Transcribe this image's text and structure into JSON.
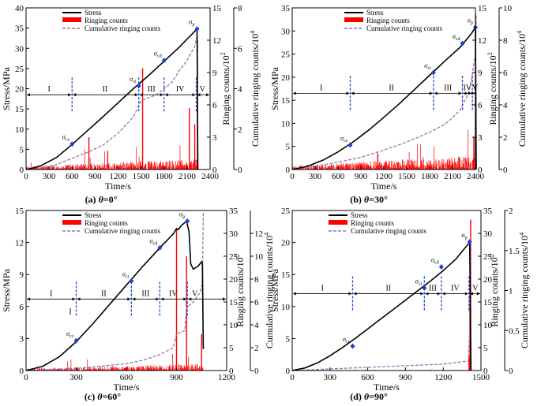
{
  "colors": {
    "stress": "#000000",
    "ringing": "#ff0000",
    "cumulative": "#a06fb4",
    "stage_line": "#1f3fd9",
    "marker": "#1f3fd9"
  },
  "legend_labels": [
    "Stress",
    "Ringing counts",
    "Cumulative ringing counts"
  ],
  "chart_data": [
    {
      "id": "a",
      "type": "line",
      "caption": "(a) θ=0°",
      "caption_prefix": "(a) ",
      "caption_var": "θ",
      "caption_val": "=0°",
      "xlabel": "Time/s",
      "ylabel_left": "Stress/MPa",
      "ylabel_r1": "Ringing counts/10",
      "ylabel_r1_exp": "2",
      "ylabel_r2": "Cumulative ringing counts/10",
      "ylabel_r2_exp": "4",
      "xlim": [
        0,
        2400
      ],
      "xticks": [
        0,
        300,
        600,
        900,
        1200,
        1500,
        1800,
        2100,
        2400
      ],
      "ylim_left": [
        0,
        40
      ],
      "yticks_left": [
        0,
        5,
        10,
        15,
        20,
        25,
        30,
        35,
        40
      ],
      "ylim_r1": [
        0,
        15
      ],
      "yticks_r1": [
        0,
        3,
        6,
        9,
        12,
        15
      ],
      "ylim_r2": [
        0,
        8
      ],
      "yticks_r2": [
        0,
        2,
        4,
        6,
        8
      ],
      "stress": {
        "x": [
          0,
          100,
          200,
          400,
          600,
          800,
          1000,
          1200,
          1400,
          1600,
          1800,
          2000,
          2100,
          2200,
          2230,
          2240
        ],
        "y": [
          0,
          0.4,
          1.0,
          3.0,
          6.2,
          9.6,
          13.0,
          16.5,
          20.0,
          23.3,
          26.8,
          30.3,
          32.3,
          34.2,
          34.8,
          0
        ]
      },
      "cumulative": {
        "x": [
          0,
          200,
          400,
          600,
          800,
          1000,
          1200,
          1400,
          1500,
          1700,
          1900,
          2000,
          2100,
          2200,
          2230
        ],
        "y": [
          0,
          0.08,
          0.25,
          0.55,
          0.85,
          1.2,
          1.8,
          2.6,
          3.4,
          3.7,
          4.3,
          4.9,
          5.4,
          6.1,
          6.6
        ]
      },
      "ringing": {
        "density": 0.55,
        "base": 0.6,
        "max_x": 2240,
        "spikes": [
          {
            "x": 820,
            "v": 3.0
          },
          {
            "x": 1520,
            "v": 9.4
          },
          {
            "x": 2130,
            "v": 5.7
          },
          {
            "x": 2200,
            "v": 4.2
          },
          {
            "x": 2235,
            "v": 12.0
          }
        ]
      },
      "stage_bounds": [
        600,
        1470,
        1800,
        2220
      ],
      "stages": [
        {
          "label": "I",
          "x": 300
        },
        {
          "label": "II",
          "x": 1030
        },
        {
          "label": "III",
          "x": 1635
        },
        {
          "label": "IV",
          "x": 2010
        },
        {
          "label": "V",
          "x": 2300
        }
      ],
      "stage_y": 18.5,
      "markers": [
        {
          "label": "σcc",
          "sym": "σ",
          "sub": "cc",
          "x": 600,
          "y": 6.3
        },
        {
          "label": "σci",
          "sym": "σ",
          "sub": "ci",
          "x": 1470,
          "y": 20.7
        },
        {
          "label": "σcd",
          "sym": "σ",
          "sub": "cd",
          "x": 1800,
          "y": 27.0
        },
        {
          "label": "σp",
          "sym": "σ",
          "sub": "p",
          "x": 2230,
          "y": 34.8
        }
      ],
      "legend_pos": "top-left"
    },
    {
      "id": "b",
      "type": "line",
      "caption": "(b) θ=30°",
      "caption_prefix": "(b) ",
      "caption_var": "θ",
      "caption_val": "=30°",
      "xlabel": "Time/s",
      "ylabel_left": "Stress/MPa",
      "ylabel_r1": "Ringing counts/10",
      "ylabel_r1_exp": "2",
      "ylabel_r2": "Cumulative ringing counts/10",
      "ylabel_r2_exp": "4",
      "xlim": [
        0,
        2400
      ],
      "xticks": [
        0,
        300,
        600,
        900,
        1200,
        1500,
        1800,
        2100,
        2400
      ],
      "ylim_left": [
        0,
        35
      ],
      "yticks_left": [
        0,
        5,
        10,
        15,
        20,
        25,
        30,
        35
      ],
      "ylim_r1": [
        0,
        15
      ],
      "yticks_r1": [
        0,
        3,
        6,
        9,
        12,
        15
      ],
      "ylim_r2": [
        0,
        10
      ],
      "yticks_r2": [
        0,
        2,
        4,
        6,
        8,
        10
      ],
      "stress": {
        "x": [
          0,
          200,
          400,
          600,
          800,
          1000,
          1200,
          1400,
          1600,
          1800,
          2000,
          2200,
          2350,
          2400,
          2410
        ],
        "y": [
          0,
          0.7,
          2.0,
          3.8,
          6.0,
          8.5,
          11.3,
          14.2,
          17.3,
          20.4,
          23.5,
          26.5,
          29.5,
          30.8,
          0
        ]
      },
      "cumulative": {
        "x": [
          0,
          300,
          600,
          900,
          1200,
          1500,
          1800,
          2000,
          2100,
          2200,
          2300,
          2350,
          2400,
          2410
        ],
        "y": [
          0,
          0.2,
          0.45,
          0.75,
          1.2,
          1.7,
          2.3,
          2.8,
          3.2,
          3.7,
          4.6,
          5.6,
          7.2,
          9.5
        ]
      },
      "ringing": {
        "density": 0.6,
        "base": 0.7,
        "max_x": 2410,
        "spikes": [
          {
            "x": 1120,
            "v": 1.5
          },
          {
            "x": 2380,
            "v": 3.0
          },
          {
            "x": 2400,
            "v": 14.5
          }
        ]
      },
      "stage_bounds": [
        760,
        1850,
        2230,
        2360
      ],
      "stages": [
        {
          "label": "I",
          "x": 380
        },
        {
          "label": "II",
          "x": 1300
        },
        {
          "label": "III",
          "x": 2040
        },
        {
          "label": "IV",
          "x": 2295
        },
        {
          "label": "V",
          "x": 2395
        }
      ],
      "stage_y": 16.5,
      "markers": [
        {
          "label": "σcc",
          "sym": "σ",
          "sub": "cc",
          "x": 760,
          "y": 5.3
        },
        {
          "label": "σci",
          "sym": "σ",
          "sub": "ci",
          "x": 1850,
          "y": 21.0
        },
        {
          "label": "σcd",
          "sym": "σ",
          "sub": "cd",
          "x": 2230,
          "y": 27.3
        },
        {
          "label": "σp",
          "sym": "σ",
          "sub": "p",
          "x": 2400,
          "y": 30.8
        }
      ],
      "legend_pos": "top-center"
    },
    {
      "id": "c",
      "type": "line",
      "caption": "(c) θ=60°",
      "caption_prefix": "(c) ",
      "caption_var": "θ",
      "caption_val": "=60°",
      "xlabel": "Time/s",
      "ylabel_left": "Stress/MPa",
      "ylabel_r1": "Ringing counts/10",
      "ylabel_r1_exp": "2",
      "ylabel_r2": "Cumulative ringing counts/10",
      "ylabel_r2_exp": "4",
      "xlim": [
        0,
        1200
      ],
      "xticks": [
        0,
        300,
        600,
        900,
        1200
      ],
      "ylim_left": [
        0,
        15
      ],
      "yticks_left": [
        0,
        3,
        6,
        9,
        12,
        15
      ],
      "ylim_r1": [
        0,
        35
      ],
      "yticks_r1": [
        0,
        5,
        10,
        15,
        20,
        25,
        30,
        35
      ],
      "ylim_r2": [
        0,
        14
      ],
      "yticks_r2": [
        0,
        2,
        4,
        6,
        8,
        10,
        12
      ],
      "stress": {
        "x": [
          0,
          100,
          200,
          300,
          400,
          500,
          600,
          700,
          800,
          880,
          900,
          910,
          930,
          960,
          975,
          985,
          1000,
          1030,
          1050,
          1055,
          1060
        ],
        "y": [
          0,
          0.4,
          1.3,
          2.7,
          4.4,
          6.2,
          8.0,
          9.8,
          11.5,
          12.8,
          13.3,
          13.2,
          13.6,
          14.0,
          13.0,
          10.0,
          9.5,
          9.8,
          10.2,
          10.0,
          2.0
        ]
      },
      "cumulative": {
        "x": [
          0,
          200,
          400,
          600,
          700,
          800,
          880,
          900,
          950,
          960,
          1000,
          1040,
          1050,
          1055,
          1060
        ],
        "y": [
          0,
          0.1,
          0.3,
          0.6,
          0.9,
          1.4,
          2.0,
          3.2,
          3.5,
          5.5,
          6.0,
          6.8,
          7.2,
          8.0,
          13.8
        ]
      },
      "ringing": {
        "density": 0.5,
        "base": 1.0,
        "max_x": 1060,
        "spikes": [
          {
            "x": 900,
            "v": 31.0
          },
          {
            "x": 960,
            "v": 25.0
          },
          {
            "x": 1050,
            "v": 8.0
          }
        ]
      },
      "stage_bounds": [
        300,
        630,
        800,
        965
      ],
      "stages": [
        {
          "label": "I",
          "x": 150
        },
        {
          "label": "II",
          "x": 465
        },
        {
          "label": "III",
          "x": 715
        },
        {
          "label": "IV",
          "x": 880
        },
        {
          "label": "V",
          "x": 1010
        }
      ],
      "stage_y": 6.7,
      "stage_extra": {
        "label": "I",
        "x": 265,
        "y": 5.3
      },
      "markers": [
        {
          "label": "σcc",
          "sym": "σ",
          "sub": "cc",
          "x": 300,
          "y": 2.8
        },
        {
          "label": "σci",
          "sym": "σ",
          "sub": "ci",
          "x": 630,
          "y": 8.4
        },
        {
          "label": "σcd",
          "sym": "σ",
          "sub": "cd",
          "x": 800,
          "y": 11.5
        },
        {
          "label": "σp",
          "sym": "σ",
          "sub": "p",
          "x": 965,
          "y": 14.0
        }
      ],
      "legend_pos": "top-left"
    },
    {
      "id": "d",
      "type": "line",
      "caption": "(d) θ=90°",
      "caption_prefix": "(d) ",
      "caption_var": "θ",
      "caption_val": "=90°",
      "xlabel": "Time/s",
      "ylabel_left": "Stress/MPa",
      "ylabel_r1": "Ringing counts/10",
      "ylabel_r1_exp": "2",
      "ylabel_r2": "Cumulative ringing counts/10",
      "ylabel_r2_exp": "4",
      "xlim": [
        0,
        1500
      ],
      "xticks": [
        0,
        300,
        600,
        900,
        1200,
        1500
      ],
      "ylim_left": [
        0,
        25
      ],
      "yticks_left": [
        0,
        5,
        10,
        15,
        20,
        25
      ],
      "ylim_r1": [
        0,
        35
      ],
      "yticks_r1": [
        0,
        5,
        10,
        15,
        20,
        25,
        30,
        35
      ],
      "ylim_r2": [
        0,
        2.0
      ],
      "yticks_r2": [
        0.0,
        0.5,
        1.0,
        1.5,
        2.0
      ],
      "stress": {
        "x": [
          0,
          100,
          200,
          300,
          400,
          500,
          600,
          700,
          800,
          900,
          1000,
          1100,
          1200,
          1300,
          1400,
          1410,
          1420
        ],
        "y": [
          0,
          0.4,
          1.2,
          2.3,
          3.6,
          5.0,
          6.5,
          8.0,
          9.5,
          11.0,
          12.5,
          14.0,
          15.6,
          17.4,
          19.8,
          20.1,
          0
        ]
      },
      "cumulative": {
        "x": [
          0,
          300,
          600,
          900,
          1200,
          1400,
          1410,
          1420
        ],
        "y": [
          0,
          0.02,
          0.04,
          0.06,
          0.08,
          0.12,
          0.5,
          1.7
        ]
      },
      "ringing": {
        "density": 0.15,
        "base": 0.3,
        "max_x": 1420,
        "spikes": [
          {
            "x": 1405,
            "v": 3.0
          },
          {
            "x": 1412,
            "v": 14.0
          },
          {
            "x": 1418,
            "v": 33.0
          }
        ]
      },
      "stage_bounds": [
        480,
        1050,
        1185,
        1405
      ],
      "stages": [
        {
          "label": "I",
          "x": 240
        },
        {
          "label": "II",
          "x": 765
        },
        {
          "label": "III",
          "x": 1117
        },
        {
          "label": "IV",
          "x": 1295
        },
        {
          "label": "V",
          "x": 1455
        }
      ],
      "stage_y": 12.0,
      "markers": [
        {
          "label": "σcc",
          "sym": "σ",
          "sub": "cc",
          "x": 480,
          "y": 3.8
        },
        {
          "label": "σci",
          "sym": "σ",
          "sub": "ci",
          "x": 1050,
          "y": 12.9
        },
        {
          "label": "σcd",
          "sym": "σ",
          "sub": "cd",
          "x": 1185,
          "y": 16.2
        },
        {
          "label": "σp",
          "sym": "σ",
          "sub": "p",
          "x": 1410,
          "y": 20.1
        }
      ],
      "legend_pos": "top-left"
    }
  ]
}
